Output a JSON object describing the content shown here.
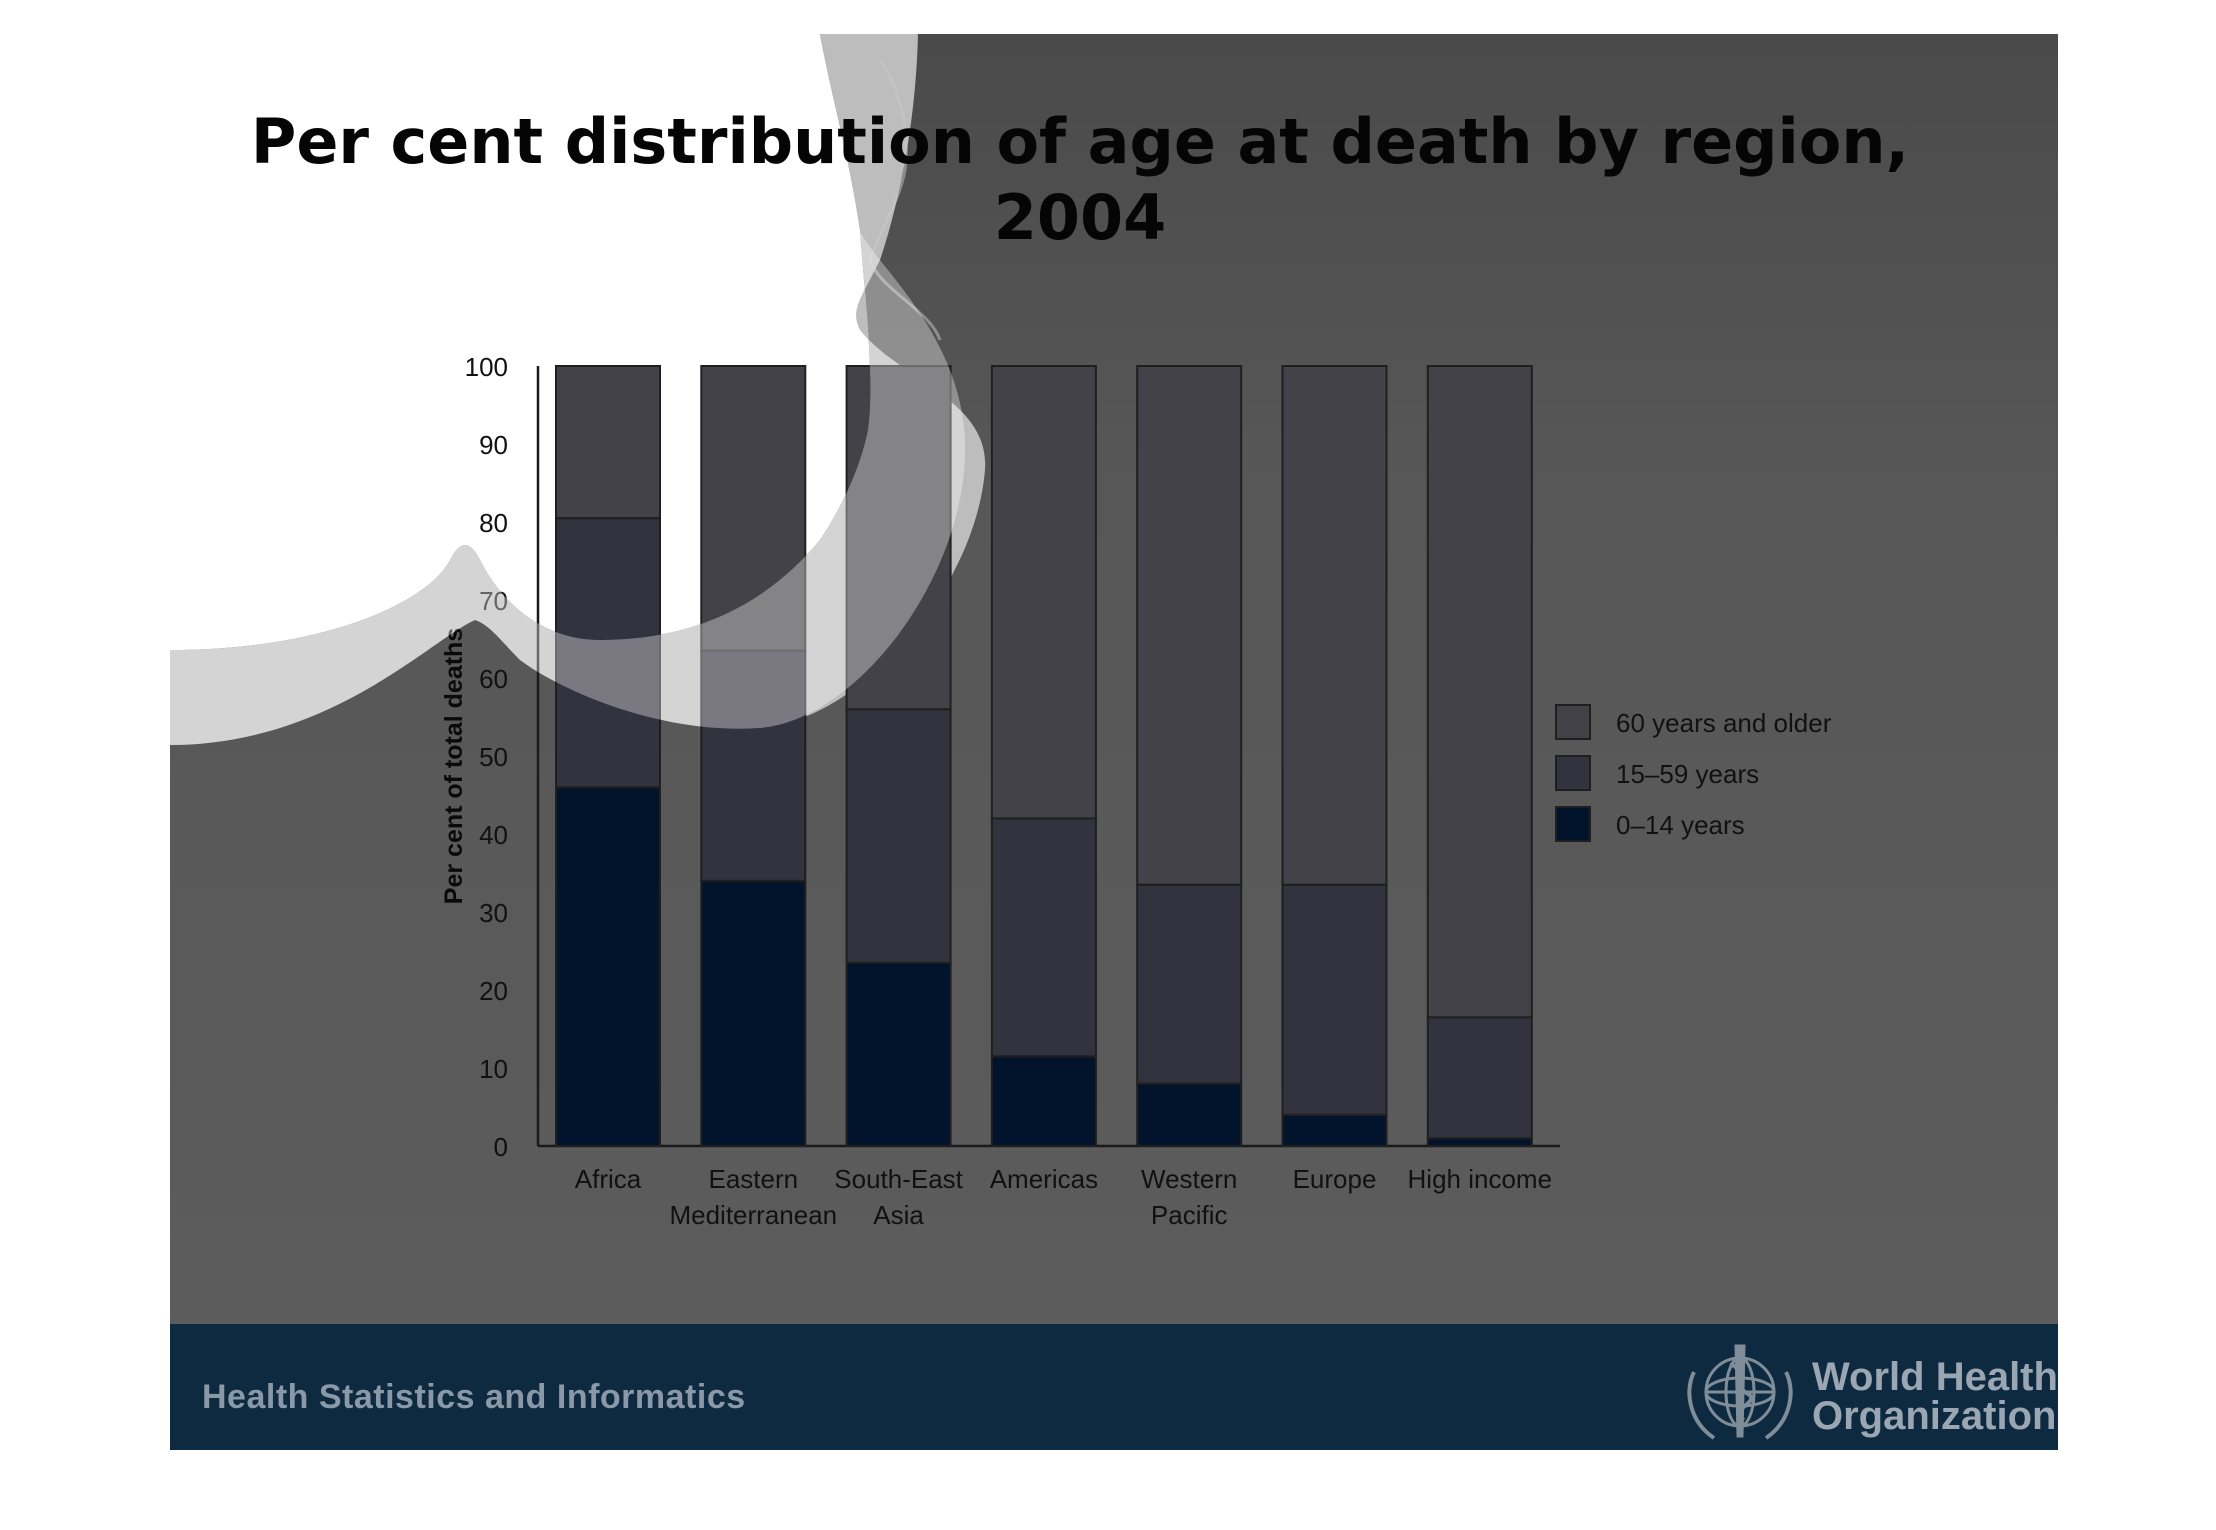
{
  "slide": {
    "title_line1": "Per cent distribution of age at death by region,",
    "title_line2": "2004",
    "footer_left": "Health Statistics and Informatics",
    "org_line1": "World Health",
    "org_line2": "Organization",
    "logo_icon": "who-emblem-icon"
  },
  "colors": {
    "panel": "#5c5c5c",
    "footer_band": "#0e2a40",
    "band_old": "#434248",
    "band_mid": "#33323f",
    "band_young": "#02132c"
  },
  "chart_data": {
    "type": "bar",
    "stacked": true,
    "title": "",
    "xlabel": "",
    "ylabel": "Per cent of total deaths",
    "ylim": [
      0,
      100
    ],
    "yticks": [
      0,
      10,
      20,
      30,
      40,
      50,
      60,
      70,
      80,
      90,
      100
    ],
    "categories": [
      "Africa",
      "Eastern Mediterranean",
      "South-East Asia",
      "Americas",
      "Western Pacific",
      "Europe",
      "High income"
    ],
    "category_lines": [
      [
        "Africa"
      ],
      [
        "Eastern",
        "Mediterranean"
      ],
      [
        "South-East",
        "Asia"
      ],
      [
        "Americas"
      ],
      [
        "Western",
        "Pacific"
      ],
      [
        "Europe"
      ],
      [
        "High income"
      ]
    ],
    "series": [
      {
        "name": "0–14 years",
        "color": "#02132c",
        "values": [
          46,
          34,
          23.5,
          11.5,
          8,
          4,
          1
        ]
      },
      {
        "name": "15–59 years",
        "color": "#33323f",
        "values": [
          34.5,
          29.5,
          32.5,
          30.5,
          25.5,
          29.5,
          15.5
        ]
      },
      {
        "name": "60 years and older",
        "color": "#434248",
        "values": [
          19.5,
          36.5,
          44,
          58,
          66.5,
          66.5,
          83.5
        ]
      }
    ],
    "legend_order": [
      "60 years and older",
      "15–59 years",
      "0–14 years"
    ],
    "legend_position": "right",
    "grid": false
  }
}
